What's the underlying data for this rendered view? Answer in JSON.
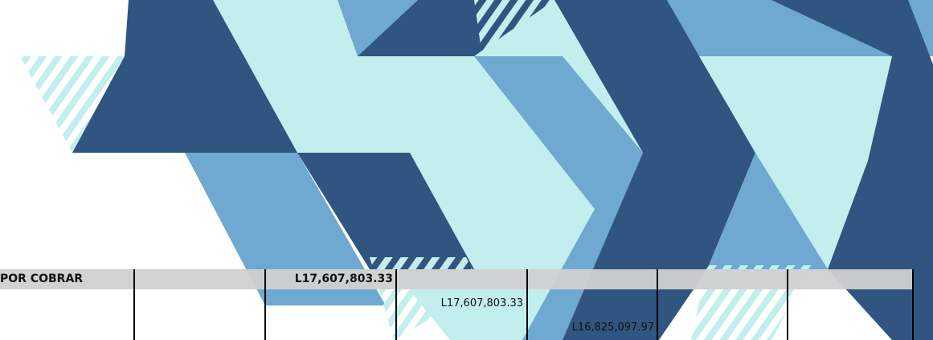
{
  "table": {
    "header_label": "POR COBRAR",
    "header_total": "L17,607,803.33",
    "row_values": [
      "L17,607,803.33",
      "L16,825,097.97"
    ]
  }
}
